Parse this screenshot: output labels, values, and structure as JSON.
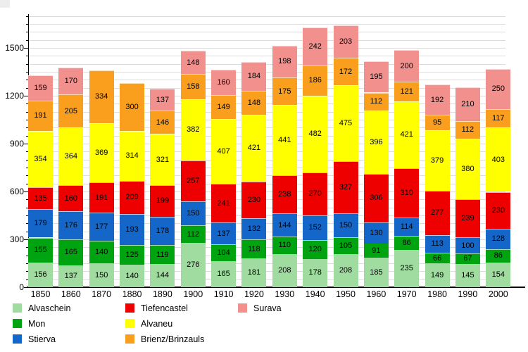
{
  "chart_data": {
    "type": "bar",
    "stacked": true,
    "title": "",
    "xlabel": "",
    "ylabel": "",
    "categories": [
      "1850",
      "1860",
      "1870",
      "1880",
      "1890",
      "1900",
      "1910",
      "1920",
      "1930",
      "1940",
      "1950",
      "1960",
      "1970",
      "1980",
      "1990",
      "2000"
    ],
    "series": [
      {
        "name": "Alvaschein",
        "color": "#a0dca0",
        "values": [
          156,
          137,
          150,
          140,
          144,
          276,
          165,
          181,
          208,
          178,
          208,
          185,
          235,
          149,
          145,
          154
        ]
      },
      {
        "name": "Mon",
        "color": "#00a410",
        "values": [
          155,
          165,
          140,
          125,
          119,
          112,
          104,
          118,
          110,
          120,
          105,
          91,
          86,
          66,
          67,
          86
        ]
      },
      {
        "name": "Stierva",
        "color": "#1467c8",
        "values": [
          179,
          176,
          177,
          193,
          178,
          150,
          137,
          132,
          144,
          152,
          150,
          130,
          114,
          113,
          100,
          128
        ]
      },
      {
        "name": "Tiefencastel",
        "color": "#ee0000",
        "values": [
          135,
          160,
          191,
          209,
          199,
          257,
          241,
          230,
          238,
          270,
          327,
          306,
          310,
          277,
          239,
          230
        ]
      },
      {
        "name": "Alvaneu",
        "color": "#ffff00",
        "values": [
          354,
          364,
          369,
          314,
          321,
          382,
          407,
          421,
          441,
          482,
          475,
          396,
          421,
          379,
          380,
          403
        ]
      },
      {
        "name": "Brienz/Brinzauls",
        "color": "#fa9e1e",
        "values": [
          191,
          205,
          334,
          300,
          146,
          158,
          149,
          148,
          175,
          186,
          172,
          112,
          121,
          95,
          112,
          117
        ]
      },
      {
        "name": "Surava",
        "color": "#f2908e",
        "values": [
          159,
          170,
          null,
          null,
          137,
          148,
          160,
          184,
          198,
          242,
          203,
          195,
          200,
          192,
          210,
          250
        ]
      }
    ],
    "y_axis": {
      "ticks": [
        0,
        300,
        600,
        900,
        1200,
        1500
      ],
      "minor_step": 50,
      "max": 1700,
      "grid": true
    },
    "legend": {
      "position": "bottom",
      "columns": [
        {
          "x": 18,
          "items": [
            "Alvaschein",
            "Mon",
            "Stierva"
          ]
        },
        {
          "x": 178,
          "items": [
            "Tiefencastel",
            "Alvaneu",
            "Brienz/Brinzauls"
          ]
        },
        {
          "x": 338,
          "items": [
            "Surava"
          ]
        }
      ]
    }
  }
}
